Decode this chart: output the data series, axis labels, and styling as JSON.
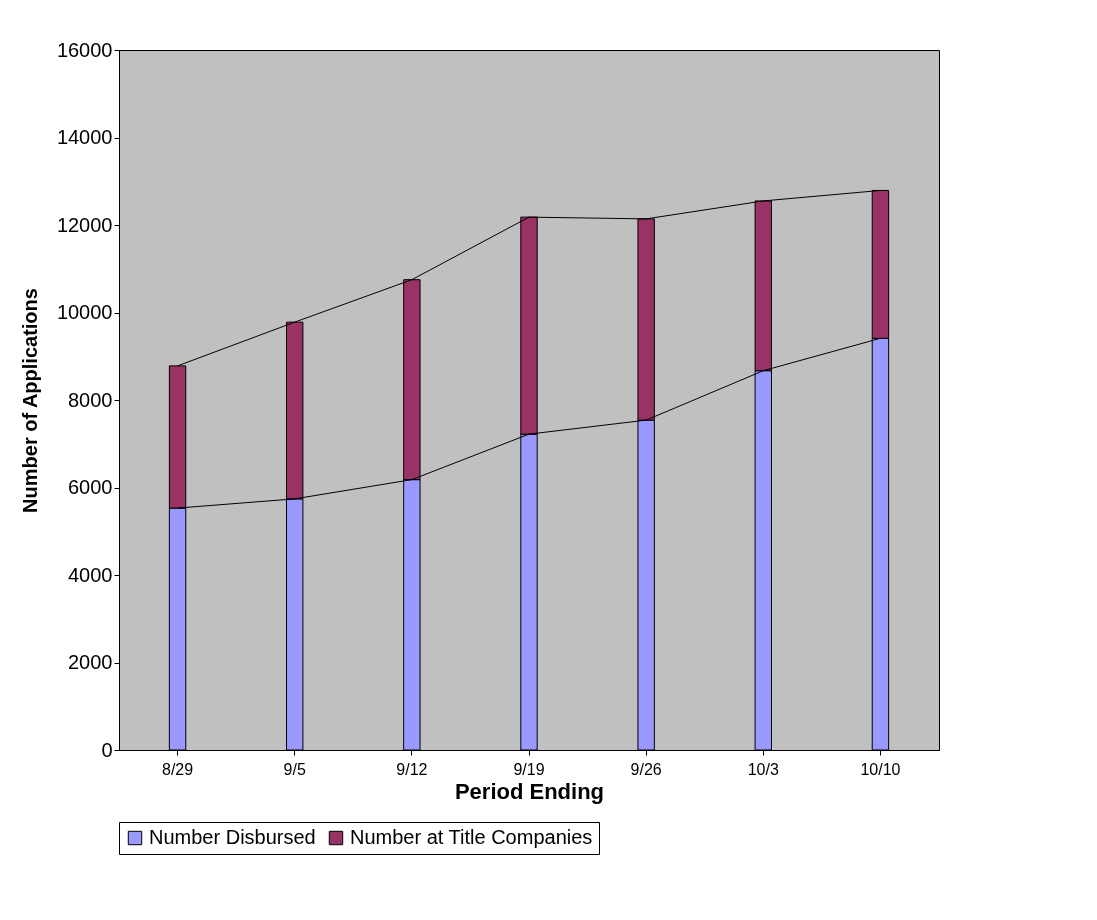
{
  "chart_data": {
    "type": "bar",
    "stacked": true,
    "xlabel": "Period Ending",
    "ylabel": "Number of Applications",
    "categories": [
      "8/29",
      "9/5",
      "9/12",
      "9/19",
      "9/26",
      "10/3",
      "10/10"
    ],
    "series": [
      {
        "name": "Number Disbursed",
        "color": "#9999ff",
        "values": [
          5530,
          5740,
          6180,
          7220,
          7540,
          8670,
          9410
        ]
      },
      {
        "name": "Number at Title Companies",
        "color": "#993366",
        "values": [
          3250,
          4040,
          4570,
          4960,
          4600,
          3880,
          3380
        ]
      }
    ],
    "ylim": [
      0,
      16000
    ],
    "yticks": [
      0,
      2000,
      4000,
      6000,
      8000,
      10000,
      12000,
      14000,
      16000
    ],
    "grid": false,
    "legend": "bottom"
  }
}
